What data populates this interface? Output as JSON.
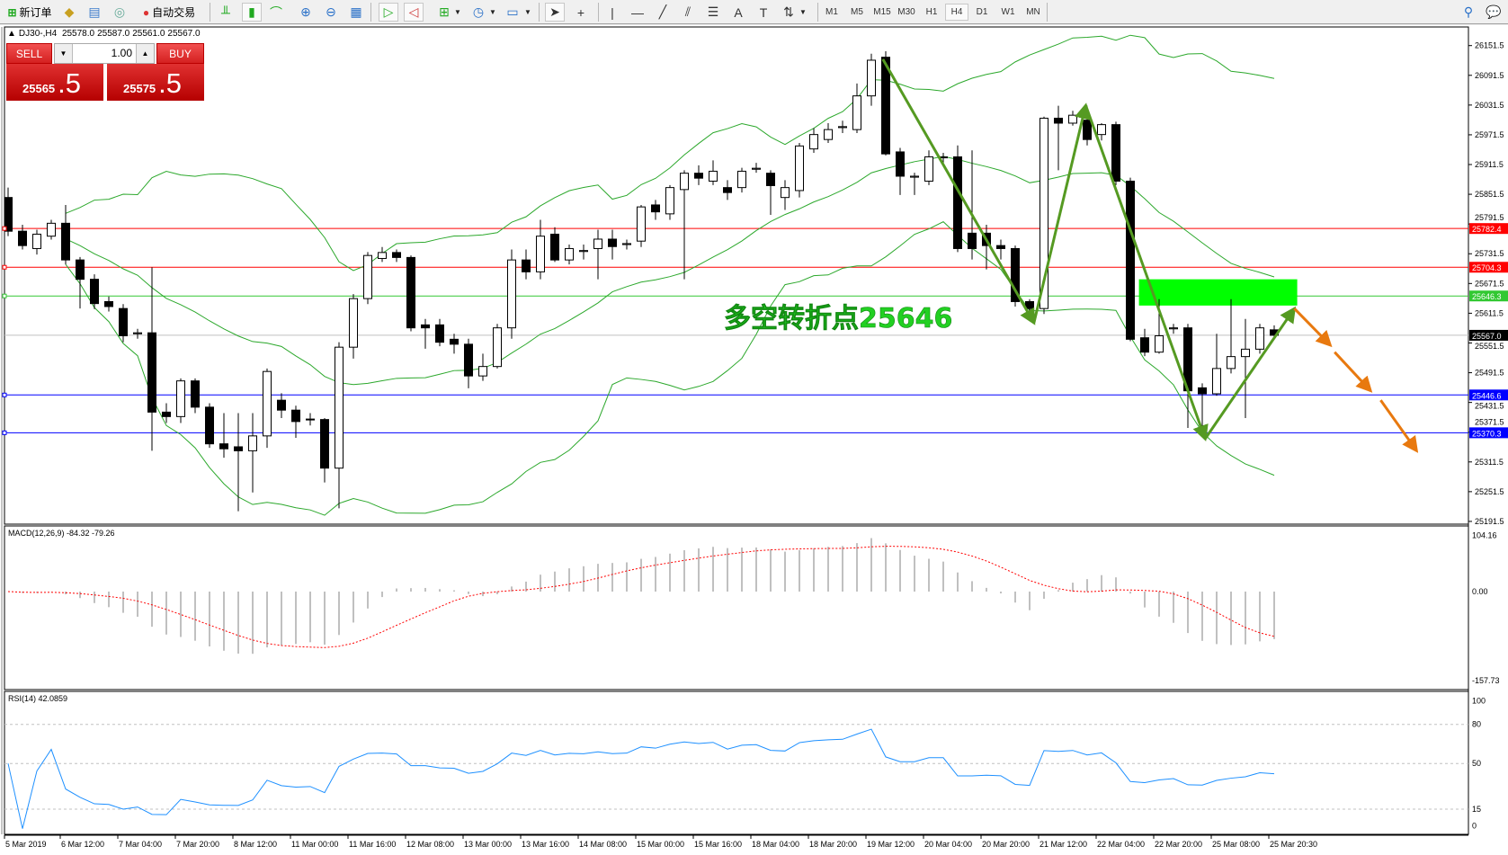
{
  "toolbar": {
    "new_order": "新订单",
    "auto_trading": "自动交易",
    "timeframes": [
      "M1",
      "M5",
      "M15",
      "M30",
      "H1",
      "H4",
      "D1",
      "W1",
      "MN"
    ],
    "active_timeframe": "H4"
  },
  "chart_header": {
    "symbol": "DJ30-,H4",
    "open": "25578.0",
    "high": "25587.0",
    "low": "25561.0",
    "close": "25567.0"
  },
  "trade_panel": {
    "sell_label": "SELL",
    "buy_label": "BUY",
    "lot": "1.00",
    "sell_price_main": "25565",
    "sell_price_big": ".5",
    "buy_price_main": "25575",
    "buy_price_big": ".5",
    "color": "#d42020"
  },
  "chart_data": {
    "type": "candlestick",
    "symbol": "DJ30-",
    "timeframe": "H4",
    "ohlc": [
      [
        25845,
        25865,
        25767,
        25777
      ],
      [
        25777,
        25790,
        25740,
        25748
      ],
      [
        25742,
        25780,
        25730,
        25771
      ],
      [
        25767,
        25800,
        25760,
        25793
      ],
      [
        25793,
        25830,
        25710,
        25719
      ],
      [
        25719,
        25725,
        25621,
        25680
      ],
      [
        25680,
        25690,
        25620,
        25631
      ],
      [
        25635,
        25645,
        25615,
        25625
      ],
      [
        25621,
        25630,
        25553,
        25566
      ],
      [
        25570,
        25580,
        25560,
        25572
      ],
      [
        25572,
        25704,
        25334,
        25412
      ],
      [
        25412,
        25430,
        25390,
        25403
      ],
      [
        25403,
        25480,
        25390,
        25475
      ],
      [
        25475,
        25480,
        25410,
        25422
      ],
      [
        25422,
        25430,
        25340,
        25348
      ],
      [
        25348,
        25410,
        25320,
        25338
      ],
      [
        25342,
        25410,
        25212,
        25334
      ],
      [
        25334,
        25410,
        25250,
        25364
      ],
      [
        25364,
        25500,
        25340,
        25494
      ],
      [
        25436,
        25450,
        25400,
        25416
      ],
      [
        25416,
        25425,
        25360,
        25393
      ],
      [
        25398,
        25410,
        25385,
        25397
      ],
      [
        25397,
        25400,
        25270,
        25299
      ],
      [
        25299,
        25553,
        25218,
        25543
      ],
      [
        25543,
        25650,
        25520,
        25641
      ],
      [
        25641,
        25735,
        25630,
        25728
      ],
      [
        25722,
        25745,
        25715,
        25734
      ],
      [
        25734,
        25740,
        25715,
        25724
      ],
      [
        25724,
        25728,
        25575,
        25582
      ],
      [
        25588,
        25600,
        25540,
        25582
      ],
      [
        25588,
        25600,
        25545,
        25553
      ],
      [
        25559,
        25570,
        25530,
        25549
      ],
      [
        25549,
        25560,
        25460,
        25485
      ],
      [
        25485,
        25530,
        25475,
        25504
      ],
      [
        25504,
        25590,
        25500,
        25582
      ],
      [
        25582,
        25740,
        25560,
        25719
      ],
      [
        25719,
        25740,
        25680,
        25695
      ],
      [
        25695,
        25800,
        25680,
        25767
      ],
      [
        25771,
        25785,
        25715,
        25719
      ],
      [
        25719,
        25750,
        25710,
        25742
      ],
      [
        25736,
        25750,
        25720,
        25738
      ],
      [
        25742,
        25780,
        25680,
        25761
      ],
      [
        25761,
        25780,
        25720,
        25746
      ],
      [
        25750,
        25760,
        25740,
        25752
      ],
      [
        25757,
        25830,
        25745,
        25826
      ],
      [
        25830,
        25840,
        25800,
        25816
      ],
      [
        25812,
        25870,
        25800,
        25865
      ],
      [
        25861,
        25900,
        25680,
        25894
      ],
      [
        25894,
        25910,
        25870,
        25884
      ],
      [
        25878,
        25920,
        25870,
        25898
      ],
      [
        25865,
        25880,
        25840,
        25855
      ],
      [
        25865,
        25905,
        25855,
        25898
      ],
      [
        25902,
        25915,
        25895,
        25904
      ],
      [
        25894,
        25900,
        25810,
        25869
      ],
      [
        25845,
        25880,
        25820,
        25865
      ],
      [
        25859,
        25955,
        25845,
        25949
      ],
      [
        25943,
        25985,
        25935,
        25972
      ],
      [
        25962,
        25995,
        25955,
        25982
      ],
      [
        25986,
        26000,
        25975,
        25988
      ],
      [
        25982,
        26075,
        25975,
        26050
      ],
      [
        26050,
        26135,
        26030,
        26122
      ],
      [
        26128,
        26140,
        25930,
        25933
      ],
      [
        25937,
        25945,
        25850,
        25888
      ],
      [
        25886,
        25895,
        25850,
        25888
      ],
      [
        25878,
        25940,
        25870,
        25927
      ],
      [
        25925,
        25935,
        25915,
        25927
      ],
      [
        25927,
        25950,
        25735,
        25742
      ],
      [
        25773,
        25940,
        25720,
        25742
      ],
      [
        25773,
        25790,
        25700,
        25748
      ],
      [
        25748,
        25760,
        25720,
        25742
      ],
      [
        25742,
        25748,
        25625,
        25635
      ],
      [
        25635,
        25640,
        25615,
        25621
      ],
      [
        25621,
        26008,
        25610,
        26005
      ],
      [
        26005,
        26030,
        25900,
        25995
      ],
      [
        25995,
        26020,
        25990,
        26011
      ],
      [
        26001,
        26030,
        25950,
        25962
      ],
      [
        25972,
        25995,
        25960,
        25992
      ],
      [
        25992,
        25998,
        25870,
        25878
      ],
      [
        25878,
        25885,
        25555,
        25559
      ],
      [
        25562,
        25580,
        25525,
        25533
      ],
      [
        25533,
        25640,
        25530,
        25566
      ],
      [
        25580,
        25590,
        25570,
        25582
      ],
      [
        25582,
        25590,
        25380,
        25455
      ],
      [
        25461,
        25470,
        25380,
        25449
      ],
      [
        25449,
        25570,
        25445,
        25500
      ],
      [
        25500,
        25640,
        25490,
        25524
      ],
      [
        25524,
        25600,
        25400,
        25539
      ],
      [
        25539,
        25590,
        25530,
        25582
      ],
      [
        25578,
        25587,
        25561,
        25567
      ]
    ],
    "price_axis_ticks": [
      "26151.5",
      "26091.5",
      "26031.5",
      "25971.5",
      "25911.5",
      "25851.5",
      "25791.5",
      "25731.5",
      "25671.5",
      "25611.5",
      "25551.5",
      "25491.5",
      "25431.5",
      "25371.5",
      "25311.5",
      "25251.5",
      "25191.5"
    ],
    "time_labels": [
      {
        "index": 0,
        "label": "5 Mar 2019"
      },
      {
        "index": 4,
        "label": "6 Mar 12:00"
      },
      {
        "index": 8,
        "label": "7 Mar 04:00"
      },
      {
        "index": 12,
        "label": "7 Mar 20:00"
      },
      {
        "index": 16,
        "label": "8 Mar 12:00"
      },
      {
        "index": 20,
        "label": "11 Mar 00:00"
      },
      {
        "index": 24,
        "label": "11 Mar 16:00"
      },
      {
        "index": 28,
        "label": "12 Mar 08:00"
      },
      {
        "index": 32,
        "label": "13 Mar 00:00"
      },
      {
        "index": 36,
        "label": "13 Mar 16:00"
      },
      {
        "index": 40,
        "label": "14 Mar 08:00"
      },
      {
        "index": 44,
        "label": "15 Mar 00:00"
      },
      {
        "index": 48,
        "label": "15 Mar 16:00"
      },
      {
        "index": 52,
        "label": "18 Mar 04:00"
      },
      {
        "index": 56,
        "label": "18 Mar 20:00"
      },
      {
        "index": 60,
        "label": "19 Mar 12:00"
      },
      {
        "index": 64,
        "label": "20 Mar 04:00"
      },
      {
        "index": 68,
        "label": "20 Mar 20:00"
      },
      {
        "index": 72,
        "label": "21 Mar 12:00"
      },
      {
        "index": 76,
        "label": "22 Mar 04:00"
      },
      {
        "index": 80,
        "label": "22 Mar 20:00"
      },
      {
        "index": 84,
        "label": "25 Mar 08:00"
      },
      {
        "index": 88,
        "label": "25 Mar 20:30"
      }
    ],
    "hlines": [
      {
        "price": 25782.4,
        "label": "25782.4",
        "color": "#ff0000"
      },
      {
        "price": 25704.3,
        "label": "25704.3",
        "color": "#ff0000"
      },
      {
        "price": 25646.3,
        "label": "25646.3",
        "color": "#32c832"
      },
      {
        "price": 25567.0,
        "label": "25567.0",
        "color": "#000000",
        "line_color": "#c0c0c0"
      },
      {
        "price": 25446.6,
        "label": "25446.6",
        "color": "#0000ff"
      },
      {
        "price": 25370.3,
        "label": "25370.3",
        "color": "#0000ff"
      }
    ],
    "indicator_bands": {
      "name": "Bollinger Bands",
      "period": 20,
      "deviation": 2,
      "color": "#2ca82c"
    },
    "annotation_text": {
      "label": "多空转折点25646",
      "index": 57.7,
      "price": 25603,
      "color": "#22d022"
    },
    "zone": {
      "from_index": 78.6,
      "to_index": 89.6,
      "high": 25680,
      "low": 25627,
      "color": "#00ff00"
    },
    "zigzag": {
      "color": "#559a22",
      "points": [
        [
          60.8,
          26124
        ],
        [
          71.3,
          25592
        ],
        [
          74.9,
          26031
        ],
        [
          83.2,
          25358
        ],
        [
          89.4,
          25621
        ]
      ]
    },
    "forecast_arrows": {
      "color": "#e8790f",
      "segments": [
        [
          [
            89.4,
            25621
          ],
          [
            91.9,
            25547
          ]
        ],
        [
          [
            92.2,
            25533
          ],
          [
            94.7,
            25455
          ]
        ],
        [
          [
            95.4,
            25436
          ],
          [
            97.9,
            25334
          ]
        ]
      ]
    },
    "macd": {
      "label": "MACD(12,26,9) -84.32 -79.26",
      "ticks": [
        "104.16",
        "0.00",
        "-157.73"
      ],
      "range": [
        -157.73,
        104.16
      ],
      "hist_color": "#c0c0c0",
      "signal_color": "#ff0000"
    },
    "rsi": {
      "label": "RSI(14) 42.0859",
      "ticks": [
        "100",
        "80",
        "50",
        "15",
        "0"
      ],
      "levels": [
        80,
        50,
        15
      ],
      "color": "#1e90ff"
    }
  }
}
